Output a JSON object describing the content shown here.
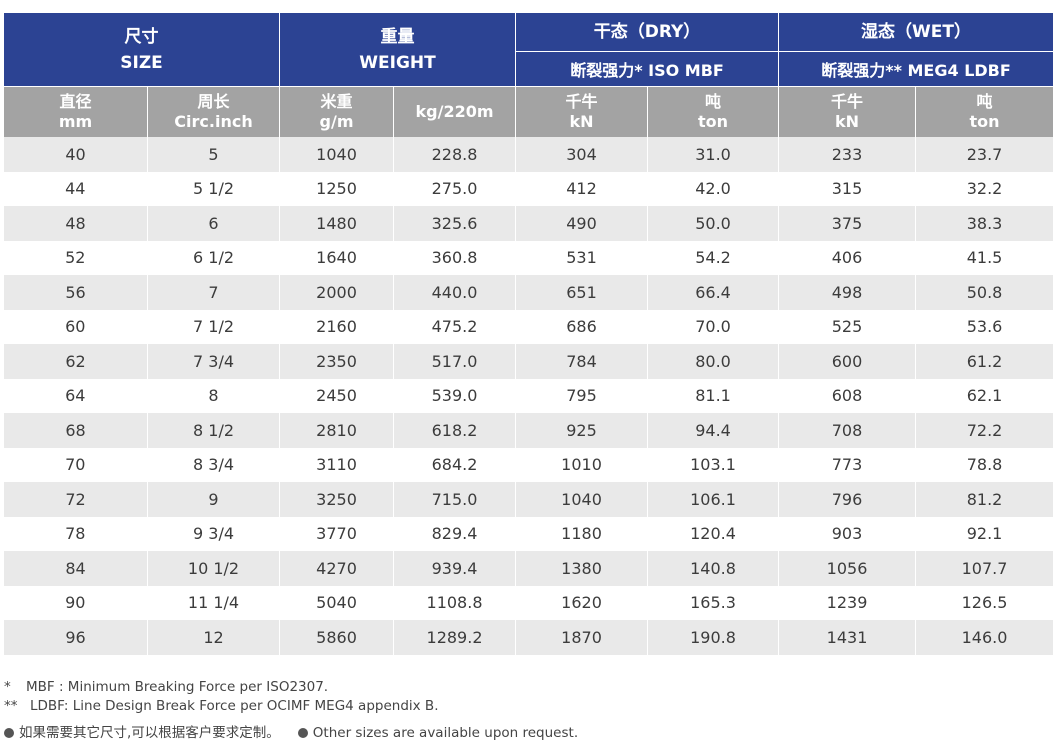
{
  "header": {
    "size_cn": "尺寸",
    "size_en": "SIZE",
    "weight_cn": "重量",
    "weight_en": "WEIGHT",
    "dry": "干态（DRY）",
    "wet": "湿态（WET）",
    "dry_sub": "断裂强力*  ISO MBF",
    "wet_sub": "断裂强力**  MEG4 LDBF"
  },
  "columns": [
    {
      "cn": "直径",
      "unit": "mm"
    },
    {
      "cn": "周长",
      "unit": "Circ.inch"
    },
    {
      "cn": "米重",
      "unit": "g/m"
    },
    {
      "cn": "kg/220m",
      "unit": ""
    },
    {
      "cn": "千牛",
      "unit": "kN"
    },
    {
      "cn": "吨",
      "unit": "ton"
    },
    {
      "cn": "千牛",
      "unit": "kN"
    },
    {
      "cn": "吨",
      "unit": "ton"
    }
  ],
  "rows": [
    [
      "40",
      "5",
      "1040",
      "228.8",
      "304",
      "31.0",
      "233",
      "23.7"
    ],
    [
      "44",
      "5 1/2",
      "1250",
      "275.0",
      "412",
      "42.0",
      "315",
      "32.2"
    ],
    [
      "48",
      "6",
      "1480",
      "325.6",
      "490",
      "50.0",
      "375",
      "38.3"
    ],
    [
      "52",
      "6 1/2",
      "1640",
      "360.8",
      "531",
      "54.2",
      "406",
      "41.5"
    ],
    [
      "56",
      "7",
      "2000",
      "440.0",
      "651",
      "66.4",
      "498",
      "50.8"
    ],
    [
      "60",
      "7 1/2",
      "2160",
      "475.2",
      "686",
      "70.0",
      "525",
      "53.6"
    ],
    [
      "62",
      "7 3/4",
      "2350",
      "517.0",
      "784",
      "80.0",
      "600",
      "61.2"
    ],
    [
      "64",
      "8",
      "2450",
      "539.0",
      "795",
      "81.1",
      "608",
      "62.1"
    ],
    [
      "68",
      "8 1/2",
      "2810",
      "618.2",
      "925",
      "94.4",
      "708",
      "72.2"
    ],
    [
      "70",
      "8 3/4",
      "3110",
      "684.2",
      "1010",
      "103.1",
      "773",
      "78.8"
    ],
    [
      "72",
      "9",
      "3250",
      "715.0",
      "1040",
      "106.1",
      "796",
      "81.2"
    ],
    [
      "78",
      "9 3/4",
      "3770",
      "829.4",
      "1180",
      "120.4",
      "903",
      "92.1"
    ],
    [
      "84",
      "10 1/2",
      "4270",
      "939.4",
      "1380",
      "140.8",
      "1056",
      "107.7"
    ],
    [
      "90",
      "11 1/4",
      "5040",
      "1108.8",
      "1620",
      "165.3",
      "1239",
      "126.5"
    ],
    [
      "96",
      "12",
      "5860",
      "1289.2",
      "1870",
      "190.8",
      "1431",
      "146.0"
    ]
  ],
  "notes": {
    "mbf_mark": "*",
    "mbf_text": "MBF : Minimum Breaking Force per ISO2307.",
    "ldbf_mark": "**",
    "ldbf_text": "LDBF: Line Design Break Force per OCIMF MEG4 appendix B.",
    "other_cn": "如果需要其它尺寸,可以根据客户要求定制。",
    "other_en": "Other sizes are available upon request."
  },
  "colors": {
    "header_blue": "#2c4393",
    "header_grey": "#a3a3a3",
    "row_shade": "#e9e9e9"
  }
}
